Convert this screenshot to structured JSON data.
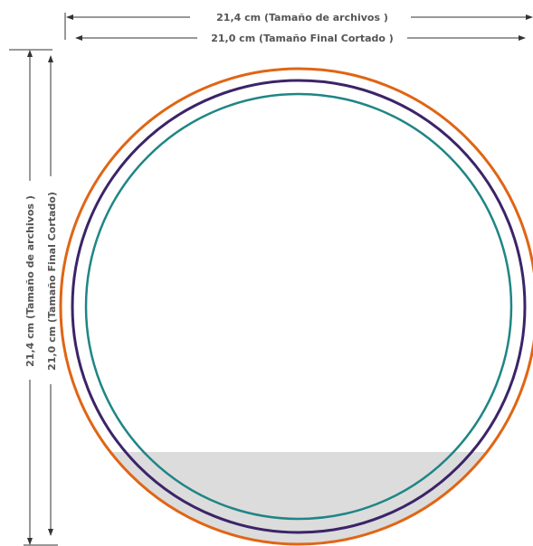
{
  "dimensions": {
    "width_file": "21,4  cm (Tamaño de archivos  )",
    "width_final": "21,0 cm (Tamaño Final Cortado )",
    "height_file": "21,4  cm (Tamaño de archivos )",
    "height_final": "21,0  cm (Tamaño Final Cortado)"
  },
  "colors": {
    "outer_ring": "#e06514",
    "middle_ring": "#3b2468",
    "inner_ring": "#1f8585",
    "shaded_area": "#dcdcdc",
    "dimension_line": "#333333",
    "dimension_text": "#555555"
  }
}
